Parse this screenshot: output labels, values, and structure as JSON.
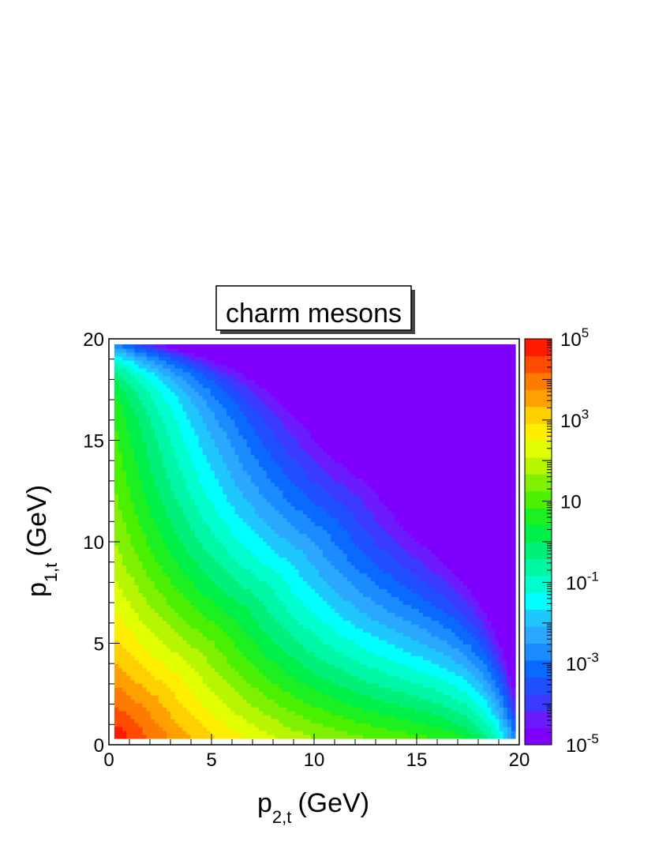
{
  "chart_data": {
    "type": "heatmap",
    "title": "charm mesons",
    "x_axis": {
      "label_main": "p",
      "label_sub": "2,t",
      "label_unit": "(GeV)",
      "range": [
        0,
        20
      ],
      "ticks": [
        "0",
        "5",
        "10",
        "15",
        "20"
      ]
    },
    "y_axis": {
      "label_main": "p",
      "label_sub": "1,t",
      "label_unit": "(GeV)",
      "range": [
        0,
        20
      ],
      "ticks": [
        "0",
        "5",
        "10",
        "15",
        "20"
      ]
    },
    "z_axis": {
      "scale": "log",
      "range": [
        1e-05,
        100000
      ],
      "labels": [
        {
          "base": "10",
          "exp": "5",
          "value": 100000
        },
        {
          "base": "10",
          "exp": "3",
          "value": 1000
        },
        {
          "base": "10",
          "exp": "",
          "value": 10
        },
        {
          "base": "10",
          "exp": "-1",
          "value": 0.1
        },
        {
          "base": "10",
          "exp": "-3",
          "value": 0.001
        },
        {
          "base": "10",
          "exp": "-5",
          "value": 1e-05
        }
      ]
    },
    "palette": [
      "#7f00ff",
      "#6a1cff",
      "#3b3bff",
      "#1f4fff",
      "#0a6aff",
      "#1a8cff",
      "#2aa8ff",
      "#1ec8ff",
      "#00ffff",
      "#00ffcc",
      "#00f7a6",
      "#00f07a",
      "#00f04a",
      "#1cf020",
      "#4af000",
      "#7ff000",
      "#b8f500",
      "#e0ff00",
      "#ffee00",
      "#ffd000",
      "#ffa000",
      "#ff7a00",
      "#ff4a00",
      "#ff1a00"
    ],
    "levels": 24,
    "grid": false,
    "legend": "colorbar-right"
  }
}
